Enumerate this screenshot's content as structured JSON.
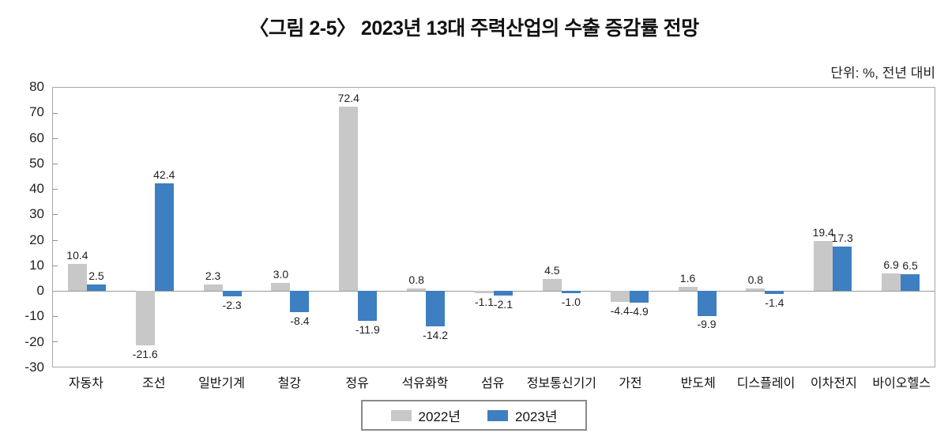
{
  "chart_data": {
    "type": "bar",
    "title": "〈그림 2-5〉 2023년 13대 주력산업의 수출 증감률 전망",
    "unit_label": "단위: %, 전년 대비",
    "categories": [
      "자동차",
      "조선",
      "일반기계",
      "철강",
      "정유",
      "석유화학",
      "섬유",
      "정보통신기기",
      "가전",
      "반도체",
      "디스플레이",
      "이차전지",
      "바이오헬스"
    ],
    "series": [
      {
        "name": "2022년",
        "color": "#c8c8c8",
        "values": [
          10.4,
          -21.6,
          2.3,
          3.0,
          72.4,
          0.8,
          -1.1,
          4.5,
          -4.4,
          1.6,
          0.8,
          19.4,
          6.9
        ]
      },
      {
        "name": "2023년",
        "color": "#3e7fc1",
        "values": [
          2.5,
          42.4,
          -2.3,
          -8.4,
          -11.9,
          -14.2,
          -2.1,
          -1.0,
          -4.9,
          -9.9,
          -1.4,
          17.3,
          6.5
        ]
      }
    ],
    "ylim": [
      -30,
      80
    ],
    "ytick_step": 10,
    "xlabel": "",
    "ylabel": "",
    "grid": false,
    "legend_position": "bottom"
  }
}
